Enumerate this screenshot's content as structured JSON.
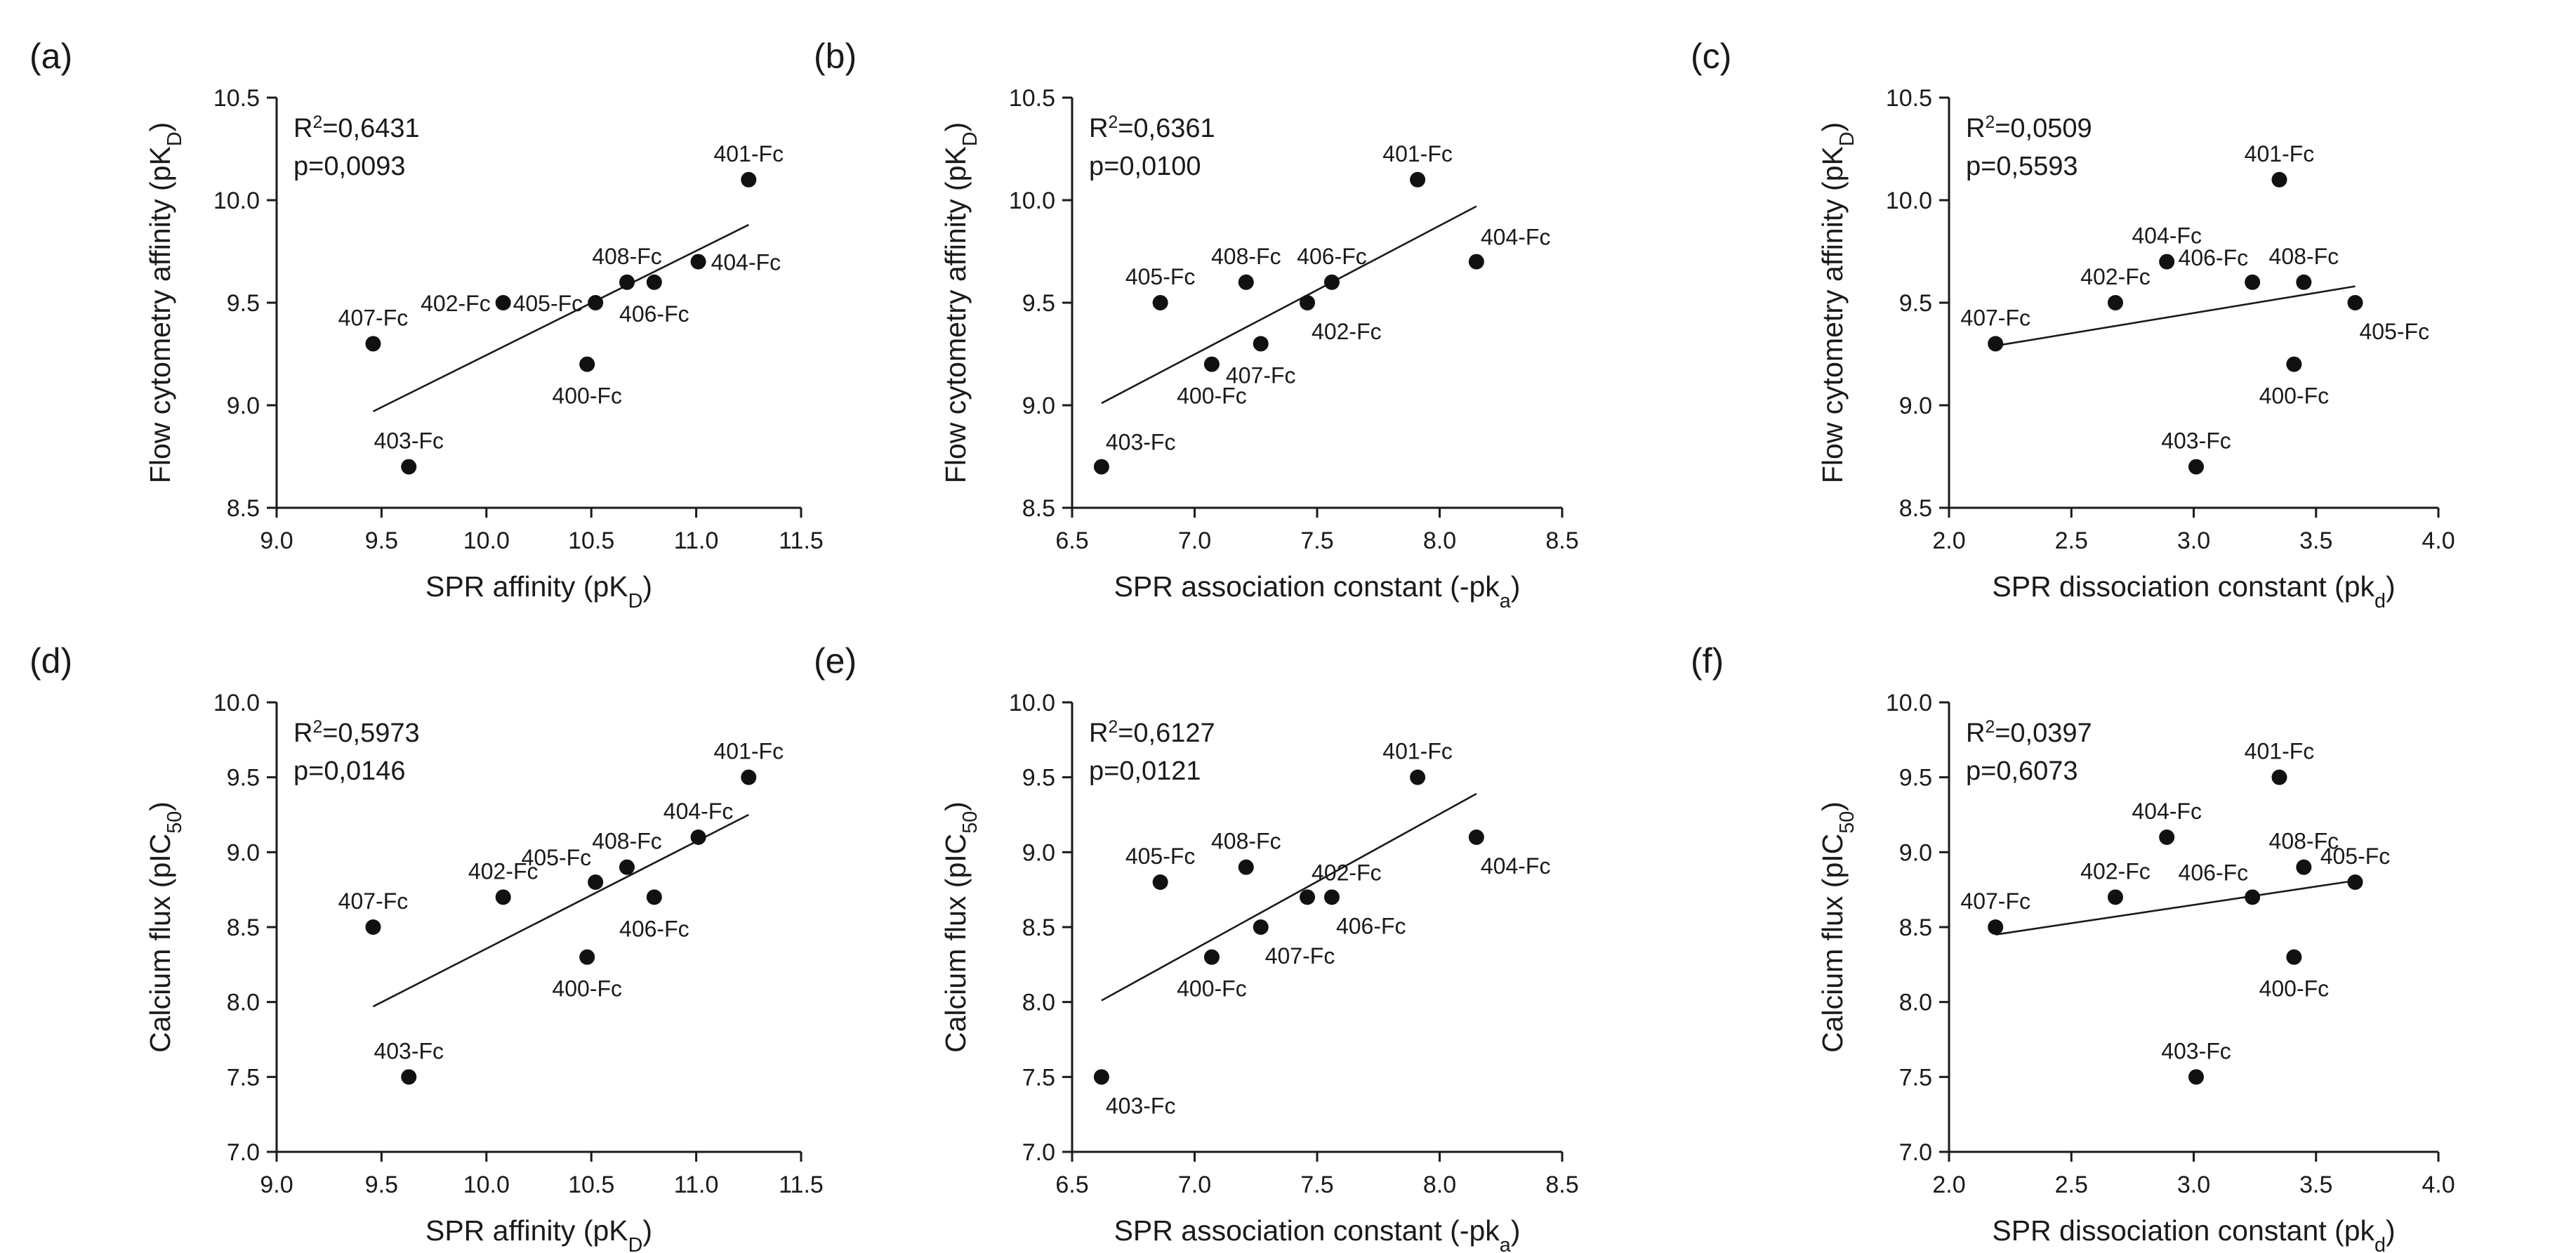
{
  "chart_data": [
    {
      "type": "scatter",
      "panel": "(a)",
      "xlabel": "SPR affinity (pK_D)",
      "ylabel": "Flow cytometry affinity (pK_D)",
      "xlim": [
        9.0,
        11.5
      ],
      "ylim": [
        8.5,
        10.5
      ],
      "xticks": [
        "9.0",
        "9.5",
        "10.0",
        "10.5",
        "11.0",
        "11.5"
      ],
      "yticks": [
        "8.5",
        "9.0",
        "9.5",
        "10.0",
        "10.5"
      ],
      "r2": "0,6431",
      "p": "0,0093",
      "fit": [
        [
          9.46,
          8.97
        ],
        [
          11.25,
          9.88
        ]
      ],
      "points": [
        {
          "label": "400-Fc",
          "x": 10.48,
          "y": 9.2,
          "pos": "below"
        },
        {
          "label": "401-Fc",
          "x": 11.25,
          "y": 10.1,
          "pos": "above"
        },
        {
          "label": "402-Fc",
          "x": 10.08,
          "y": 9.5,
          "pos": "left"
        },
        {
          "label": "403-Fc",
          "x": 9.63,
          "y": 8.7,
          "pos": "above"
        },
        {
          "label": "404-Fc",
          "x": 11.01,
          "y": 9.7,
          "pos": "right"
        },
        {
          "label": "405-Fc",
          "x": 10.52,
          "y": 9.5,
          "pos": "left"
        },
        {
          "label": "406-Fc",
          "x": 10.8,
          "y": 9.6,
          "pos": "below"
        },
        {
          "label": "407-Fc",
          "x": 9.46,
          "y": 9.3,
          "pos": "above"
        },
        {
          "label": "408-Fc",
          "x": 10.67,
          "y": 9.6,
          "pos": "above"
        }
      ]
    },
    {
      "type": "scatter",
      "panel": "(b)",
      "xlabel": "SPR association constant (-pk_a)",
      "ylabel": "Flow cytometry affinity (pK_D)",
      "xlim": [
        6.5,
        8.5
      ],
      "ylim": [
        8.5,
        10.5
      ],
      "xticks": [
        "6.5",
        "7.0",
        "7.5",
        "8.0",
        "8.5"
      ],
      "yticks": [
        "8.5",
        "9.0",
        "9.5",
        "10.0",
        "10.5"
      ],
      "r2": "0,6361",
      "p": "0,0100",
      "fit": [
        [
          6.62,
          9.01
        ],
        [
          8.15,
          9.97
        ]
      ],
      "points": [
        {
          "label": "400-Fc",
          "x": 7.07,
          "y": 9.2,
          "pos": "below"
        },
        {
          "label": "401-Fc",
          "x": 7.91,
          "y": 10.1,
          "pos": "above"
        },
        {
          "label": "402-Fc",
          "x": 7.46,
          "y": 9.5,
          "pos": "belowright"
        },
        {
          "label": "403-Fc",
          "x": 6.62,
          "y": 8.7,
          "pos": "aboveright"
        },
        {
          "label": "404-Fc",
          "x": 8.15,
          "y": 9.7,
          "pos": "aboveright"
        },
        {
          "label": "405-Fc",
          "x": 6.86,
          "y": 9.5,
          "pos": "above"
        },
        {
          "label": "406-Fc",
          "x": 7.56,
          "y": 9.6,
          "pos": "above"
        },
        {
          "label": "407-Fc",
          "x": 7.27,
          "y": 9.3,
          "pos": "below"
        },
        {
          "label": "408-Fc",
          "x": 7.21,
          "y": 9.6,
          "pos": "above"
        }
      ]
    },
    {
      "type": "scatter",
      "panel": "(c)",
      "xlabel": "SPR dissociation constant (pk_d)",
      "ylabel": "Flow cytometry affinity (pK_D)",
      "xlim": [
        2.0,
        4.0
      ],
      "ylim": [
        8.5,
        10.5
      ],
      "xticks": [
        "2.0",
        "2.5",
        "3.0",
        "3.5",
        "4.0"
      ],
      "yticks": [
        "8.5",
        "9.0",
        "9.5",
        "10.0",
        "10.5"
      ],
      "r2": "0,0509",
      "p": "0,5593",
      "fit": [
        [
          2.19,
          9.29
        ],
        [
          3.66,
          9.58
        ]
      ],
      "points": [
        {
          "label": "400-Fc",
          "x": 3.41,
          "y": 9.2,
          "pos": "below"
        },
        {
          "label": "401-Fc",
          "x": 3.35,
          "y": 10.1,
          "pos": "above"
        },
        {
          "label": "402-Fc",
          "x": 2.68,
          "y": 9.5,
          "pos": "above"
        },
        {
          "label": "403-Fc",
          "x": 3.01,
          "y": 8.7,
          "pos": "above"
        },
        {
          "label": "404-Fc",
          "x": 2.89,
          "y": 9.7,
          "pos": "above"
        },
        {
          "label": "405-Fc",
          "x": 3.66,
          "y": 9.5,
          "pos": "belowright"
        },
        {
          "label": "406-Fc",
          "x": 3.24,
          "y": 9.6,
          "pos": "aboveleft"
        },
        {
          "label": "407-Fc",
          "x": 2.19,
          "y": 9.3,
          "pos": "above"
        },
        {
          "label": "408-Fc",
          "x": 3.45,
          "y": 9.6,
          "pos": "above"
        }
      ]
    },
    {
      "type": "scatter",
      "panel": "(d)",
      "xlabel": "SPR affinity (pK_D)",
      "ylabel": "Calcium flux (pIC_50)",
      "xlim": [
        9.0,
        11.5
      ],
      "ylim": [
        7.0,
        10.0
      ],
      "xticks": [
        "9.0",
        "9.5",
        "10.0",
        "10.5",
        "11.0",
        "11.5"
      ],
      "yticks": [
        "7.0",
        "7.5",
        "8.0",
        "8.5",
        "9.0",
        "9.5",
        "10.0"
      ],
      "r2": "0,5973",
      "p": "0,0146",
      "fit": [
        [
          9.46,
          7.97
        ],
        [
          11.25,
          9.25
        ]
      ],
      "points": [
        {
          "label": "400-Fc",
          "x": 10.48,
          "y": 8.3,
          "pos": "below"
        },
        {
          "label": "401-Fc",
          "x": 11.25,
          "y": 9.5,
          "pos": "above"
        },
        {
          "label": "402-Fc",
          "x": 10.08,
          "y": 8.7,
          "pos": "above"
        },
        {
          "label": "403-Fc",
          "x": 9.63,
          "y": 7.5,
          "pos": "above"
        },
        {
          "label": "404-Fc",
          "x": 11.01,
          "y": 9.1,
          "pos": "above"
        },
        {
          "label": "405-Fc",
          "x": 10.52,
          "y": 8.8,
          "pos": "aboveleft"
        },
        {
          "label": "406-Fc",
          "x": 10.8,
          "y": 8.7,
          "pos": "below"
        },
        {
          "label": "407-Fc",
          "x": 9.46,
          "y": 8.5,
          "pos": "above"
        },
        {
          "label": "408-Fc",
          "x": 10.67,
          "y": 8.9,
          "pos": "above"
        }
      ]
    },
    {
      "type": "scatter",
      "panel": "(e)",
      "xlabel": "SPR association constant (-pk_a)",
      "ylabel": "Calcium flux (pIC_50)",
      "xlim": [
        6.5,
        8.5
      ],
      "ylim": [
        7.0,
        10.0
      ],
      "xticks": [
        "6.5",
        "7.0",
        "7.5",
        "8.0",
        "8.5"
      ],
      "yticks": [
        "7.0",
        "7.5",
        "8.0",
        "8.5",
        "9.0",
        "9.5",
        "10.0"
      ],
      "r2": "0,6127",
      "p": "0,0121",
      "fit": [
        [
          6.62,
          8.01
        ],
        [
          8.15,
          9.39
        ]
      ],
      "points": [
        {
          "label": "400-Fc",
          "x": 7.07,
          "y": 8.3,
          "pos": "below"
        },
        {
          "label": "401-Fc",
          "x": 7.91,
          "y": 9.5,
          "pos": "above"
        },
        {
          "label": "402-Fc",
          "x": 7.46,
          "y": 8.7,
          "pos": "aboveright"
        },
        {
          "label": "403-Fc",
          "x": 6.62,
          "y": 7.5,
          "pos": "belowright"
        },
        {
          "label": "404-Fc",
          "x": 8.15,
          "y": 9.1,
          "pos": "belowright"
        },
        {
          "label": "405-Fc",
          "x": 6.86,
          "y": 8.8,
          "pos": "above"
        },
        {
          "label": "406-Fc",
          "x": 7.56,
          "y": 8.7,
          "pos": "belowright"
        },
        {
          "label": "407-Fc",
          "x": 7.27,
          "y": 8.5,
          "pos": "belowright"
        },
        {
          "label": "408-Fc",
          "x": 7.21,
          "y": 8.9,
          "pos": "above"
        }
      ]
    },
    {
      "type": "scatter",
      "panel": "(f)",
      "xlabel": "SPR dissociation constant (pk_d)",
      "ylabel": "Calcium flux (pIC_50)",
      "xlim": [
        2.0,
        4.0
      ],
      "ylim": [
        7.0,
        10.0
      ],
      "xticks": [
        "2.0",
        "2.5",
        "3.0",
        "3.5",
        "4.0"
      ],
      "yticks": [
        "7.0",
        "7.5",
        "8.0",
        "8.5",
        "9.0",
        "9.5",
        "10.0"
      ],
      "r2": "0,0397",
      "p": "0,6073",
      "fit": [
        [
          2.19,
          8.45
        ],
        [
          3.66,
          8.81
        ]
      ],
      "points": [
        {
          "label": "400-Fc",
          "x": 3.41,
          "y": 8.3,
          "pos": "below"
        },
        {
          "label": "401-Fc",
          "x": 3.35,
          "y": 9.5,
          "pos": "above"
        },
        {
          "label": "402-Fc",
          "x": 2.68,
          "y": 8.7,
          "pos": "above"
        },
        {
          "label": "403-Fc",
          "x": 3.01,
          "y": 7.5,
          "pos": "above"
        },
        {
          "label": "404-Fc",
          "x": 2.89,
          "y": 9.1,
          "pos": "above"
        },
        {
          "label": "405-Fc",
          "x": 3.66,
          "y": 8.8,
          "pos": "above"
        },
        {
          "label": "406-Fc",
          "x": 3.24,
          "y": 8.7,
          "pos": "aboveleft"
        },
        {
          "label": "407-Fc",
          "x": 2.19,
          "y": 8.5,
          "pos": "above"
        },
        {
          "label": "408-Fc",
          "x": 3.45,
          "y": 8.9,
          "pos": "above"
        }
      ]
    }
  ]
}
